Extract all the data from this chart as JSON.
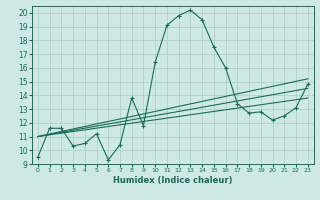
{
  "xlabel": "Humidex (Indice chaleur)",
  "ylabel": "",
  "background_color": "#cde8e5",
  "grid_color": "#aaccca",
  "line_color": "#1a6b5a",
  "xlim": [
    -0.5,
    23.5
  ],
  "ylim": [
    9,
    20.5
  ],
  "xticks": [
    0,
    1,
    2,
    3,
    4,
    5,
    6,
    7,
    8,
    9,
    10,
    11,
    12,
    13,
    14,
    15,
    16,
    17,
    18,
    19,
    20,
    21,
    22,
    23
  ],
  "yticks": [
    9,
    10,
    11,
    12,
    13,
    14,
    15,
    16,
    17,
    18,
    19,
    20
  ],
  "series": [
    {
      "x": [
        0,
        1,
        2,
        3,
        4,
        5,
        6,
        7,
        8,
        9,
        10,
        11,
        12,
        13,
        14,
        15,
        16,
        17,
        18,
        19,
        20,
        21,
        22,
        23
      ],
      "y": [
        9.5,
        11.6,
        11.6,
        10.3,
        10.5,
        11.2,
        9.3,
        10.4,
        13.8,
        11.8,
        16.4,
        19.1,
        19.8,
        20.2,
        19.5,
        17.5,
        16.0,
        13.4,
        12.7,
        12.8,
        12.2,
        12.5,
        13.1,
        14.8
      ],
      "marker": "+"
    },
    {
      "x": [
        0,
        23
      ],
      "y": [
        11.0,
        15.2
      ],
      "marker": null
    },
    {
      "x": [
        0,
        23
      ],
      "y": [
        11.0,
        14.5
      ],
      "marker": null
    },
    {
      "x": [
        0,
        23
      ],
      "y": [
        11.0,
        13.8
      ],
      "marker": null
    }
  ]
}
